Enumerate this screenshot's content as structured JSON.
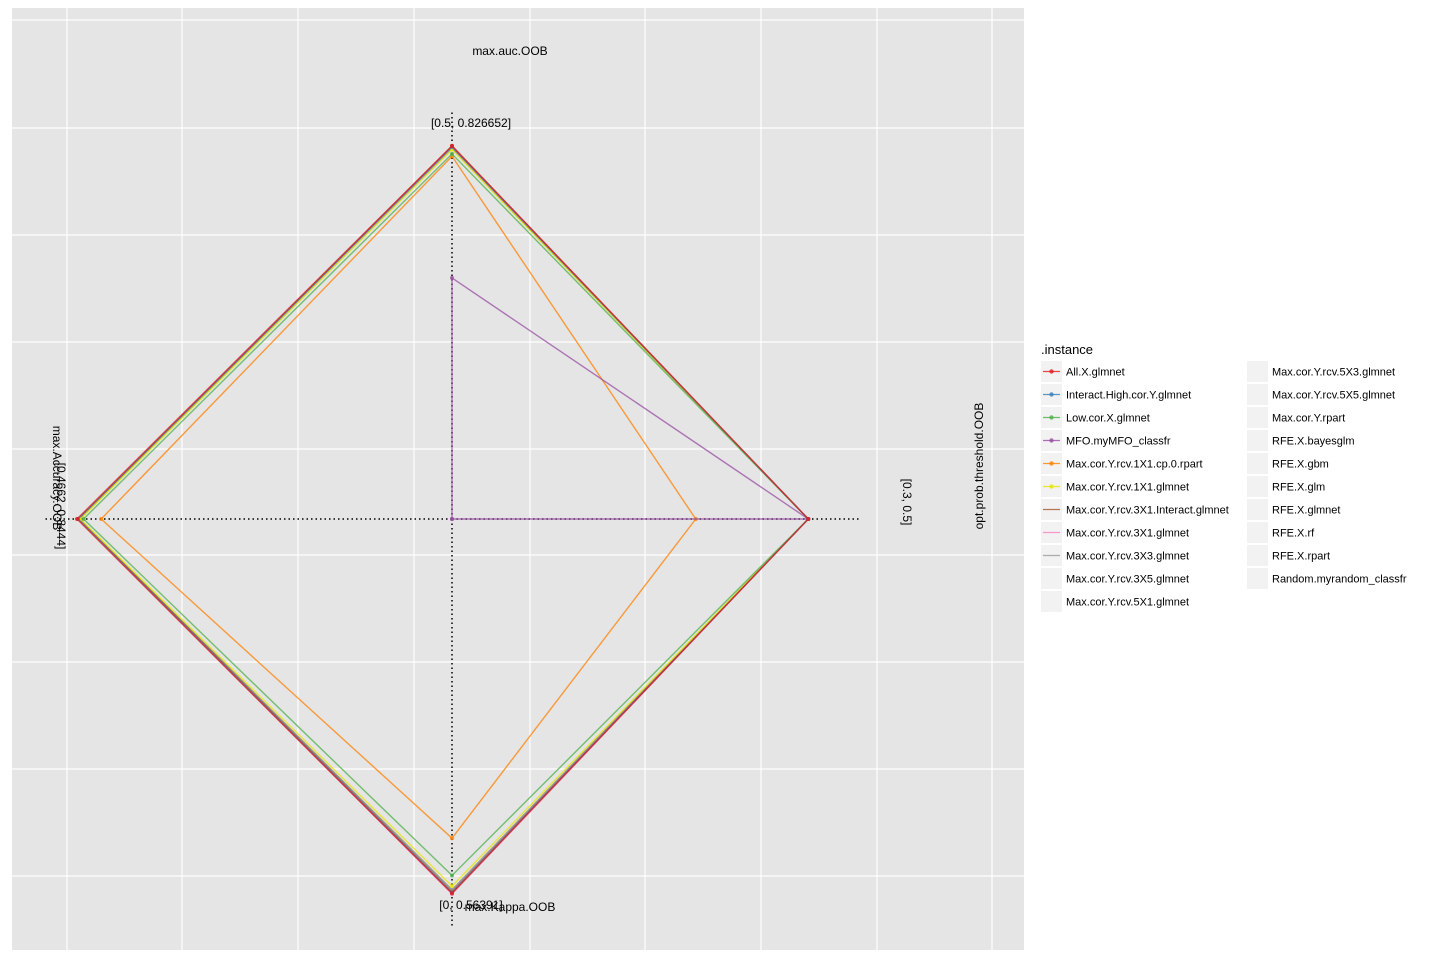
{
  "chart_data": {
    "type": "radar",
    "legend_title": ".instance",
    "legend_position": "right",
    "grid": true,
    "background": "#e5e5e5",
    "axes": [
      {
        "name": "max.auc.OOB",
        "range_label": "[0.5, 0.826652]",
        "min": 0.5,
        "max": 0.826652
      },
      {
        "name": "opt.prob.threshold.OOB",
        "range_label": "[0.3, 0.5]",
        "min": 0.3,
        "max": 0.5
      },
      {
        "name": "max.Kappa.OOB",
        "range_label": "[0, 0.56391]",
        "min": 0,
        "max": 0.56391
      },
      {
        "name": "max.Accuracy.OOB",
        "range_label": "[0.4662, 0.8444]",
        "min": 0.4662,
        "max": 0.8444
      }
    ],
    "series": [
      {
        "name": "All.X.glmnet",
        "color": "#e41a1c",
        "marker": "circle",
        "values": [
          0.825,
          0.49,
          0.563,
          0.8444
        ]
      },
      {
        "name": "Interact.High.cor.Y.glmnet",
        "color": "#377eb8",
        "marker": "triangle",
        "values": [
          0.824,
          0.49,
          0.562,
          0.8433
        ]
      },
      {
        "name": "Low.cor.X.glmnet",
        "color": "#4daf4a",
        "marker": "square",
        "values": [
          0.818,
          0.49,
          0.536,
          0.8378
        ]
      },
      {
        "name": "MFO.myMFO_classfr",
        "color": "#984ea3",
        "marker": "plus",
        "values": [
          0.71,
          0.49,
          0.0,
          0.4662
        ]
      },
      {
        "name": "Max.cor.Y.rcv.1X1.cp.0.rpart",
        "color": "#ff7f00",
        "marker": "boxcross",
        "values": [
          0.816,
          0.43,
          0.48,
          0.82
        ]
      },
      {
        "name": "Max.cor.Y.rcv.1X1.glmnet",
        "color": "#e6e600",
        "marker": "asterisk",
        "values": [
          0.822,
          0.49,
          0.552,
          0.8411
        ]
      },
      {
        "name": "Max.cor.Y.rcv.3X1.Interact.glmnet",
        "color": "#a65628",
        "marker": "none",
        "values": [
          0.825,
          0.49,
          0.561,
          0.8422
        ]
      },
      {
        "name": "Max.cor.Y.rcv.3X1.glmnet",
        "color": "#f781bf",
        "marker": "none",
        "values": [
          0.824,
          0.49,
          0.5639,
          0.8433
        ]
      },
      {
        "name": "Max.cor.Y.rcv.3X3.glmnet",
        "color": "#999999",
        "marker": "none",
        "values": [
          0.823,
          0.49,
          0.558,
          0.8422
        ]
      },
      {
        "name": "Max.cor.Y.rcv.3X5.glmnet",
        "color": "#999999",
        "marker": "none",
        "values": [
          0.823,
          0.49,
          0.558,
          0.8422
        ]
      },
      {
        "name": "Max.cor.Y.rcv.5X1.glmnet",
        "color": "#999999",
        "marker": "none",
        "values": [
          0.823,
          0.49,
          0.558,
          0.8422
        ]
      },
      {
        "name": "Max.cor.Y.rcv.5X3.glmnet",
        "color": "#999999",
        "marker": "none",
        "values": [
          0.823,
          0.49,
          0.558,
          0.8422
        ]
      },
      {
        "name": "Max.cor.Y.rcv.5X5.glmnet",
        "color": "#999999",
        "marker": "none",
        "values": [
          0.823,
          0.49,
          0.558,
          0.8422
        ]
      },
      {
        "name": "Max.cor.Y.rpart",
        "color": "#999999",
        "marker": "none",
        "values": [
          0.823,
          0.49,
          0.558,
          0.8422
        ]
      },
      {
        "name": "RFE.X.bayesglm",
        "color": "#999999",
        "marker": "none",
        "values": [
          0.823,
          0.49,
          0.558,
          0.8422
        ]
      },
      {
        "name": "RFE.X.gbm",
        "color": "#999999",
        "marker": "none",
        "values": [
          0.823,
          0.49,
          0.558,
          0.8422
        ]
      },
      {
        "name": "RFE.X.glm",
        "color": "#999999",
        "marker": "none",
        "values": [
          0.823,
          0.49,
          0.558,
          0.8422
        ]
      },
      {
        "name": "RFE.X.glmnet",
        "color": "#999999",
        "marker": "none",
        "values": [
          0.823,
          0.49,
          0.558,
          0.8422
        ]
      },
      {
        "name": "RFE.X.rf",
        "color": "#999999",
        "marker": "none",
        "values": [
          0.823,
          0.49,
          0.558,
          0.8422
        ]
      },
      {
        "name": "RFE.X.rpart",
        "color": "#999999",
        "marker": "none",
        "values": [
          0.823,
          0.49,
          0.558,
          0.8422
        ]
      },
      {
        "name": "Random.myrandom_classfr",
        "color": "#999999",
        "marker": "none",
        "values": [
          0.823,
          0.49,
          0.558,
          0.8422
        ]
      }
    ]
  }
}
